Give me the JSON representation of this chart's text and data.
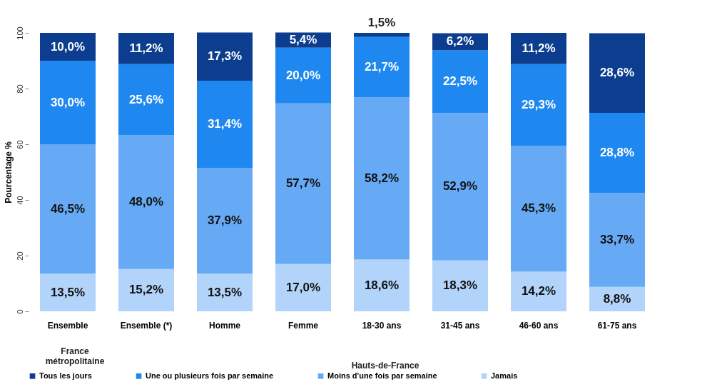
{
  "chart_data": {
    "type": "bar",
    "stacked": true,
    "ylabel": "Pourcentage %",
    "categories": [
      "Ensemble",
      "Ensemble (*)",
      "Homme",
      "Femme",
      "18-30 ans",
      "31-45 ans",
      "46-60 ans",
      "61-75 ans"
    ],
    "series": [
      {
        "name": "Jamais",
        "color": "#b3d4fa",
        "values": [
          13.5,
          15.2,
          13.5,
          17.0,
          18.6,
          18.3,
          14.2,
          8.8
        ],
        "value_labels": [
          "13,5%",
          "15,2%",
          "13,5%",
          "17,0%",
          "18,6%",
          "18,3%",
          "14,2%",
          "8,8%"
        ]
      },
      {
        "name": "Moins d'une fois par semaine",
        "color": "#66aaf5",
        "values": [
          46.5,
          48.0,
          37.9,
          57.7,
          58.2,
          52.9,
          45.3,
          33.7
        ],
        "value_labels": [
          "46,5%",
          "48,0%",
          "37,9%",
          "57,7%",
          "58,2%",
          "52,9%",
          "45,3%",
          "33,7%"
        ]
      },
      {
        "name": "Une ou plusieurs fois par semaine",
        "color": "#1f88f0",
        "values": [
          30.0,
          25.6,
          31.4,
          20.0,
          21.7,
          22.5,
          29.3,
          28.8
        ],
        "value_labels": [
          "30,0%",
          "25,6%",
          "31,4%",
          "20,0%",
          "21,7%",
          "22,5%",
          "29,3%",
          "28,8%"
        ]
      },
      {
        "name": "Tous les jours",
        "color": "#0c3d8f",
        "values": [
          10.0,
          11.2,
          17.3,
          5.4,
          1.5,
          6.2,
          11.2,
          28.6
        ],
        "value_labels": [
          "10,0%",
          "11,2%",
          "17,3%",
          "5,4%",
          "1,5%",
          "6,2%",
          "11,2%",
          "28,6%"
        ]
      }
    ],
    "ylim": [
      0,
      100
    ],
    "yticks": [
      0,
      20,
      40,
      60,
      80,
      100
    ],
    "grid": false,
    "legend": "bottom",
    "annotations": [
      "France métropolitaine",
      "Hauts-de-France"
    ]
  }
}
